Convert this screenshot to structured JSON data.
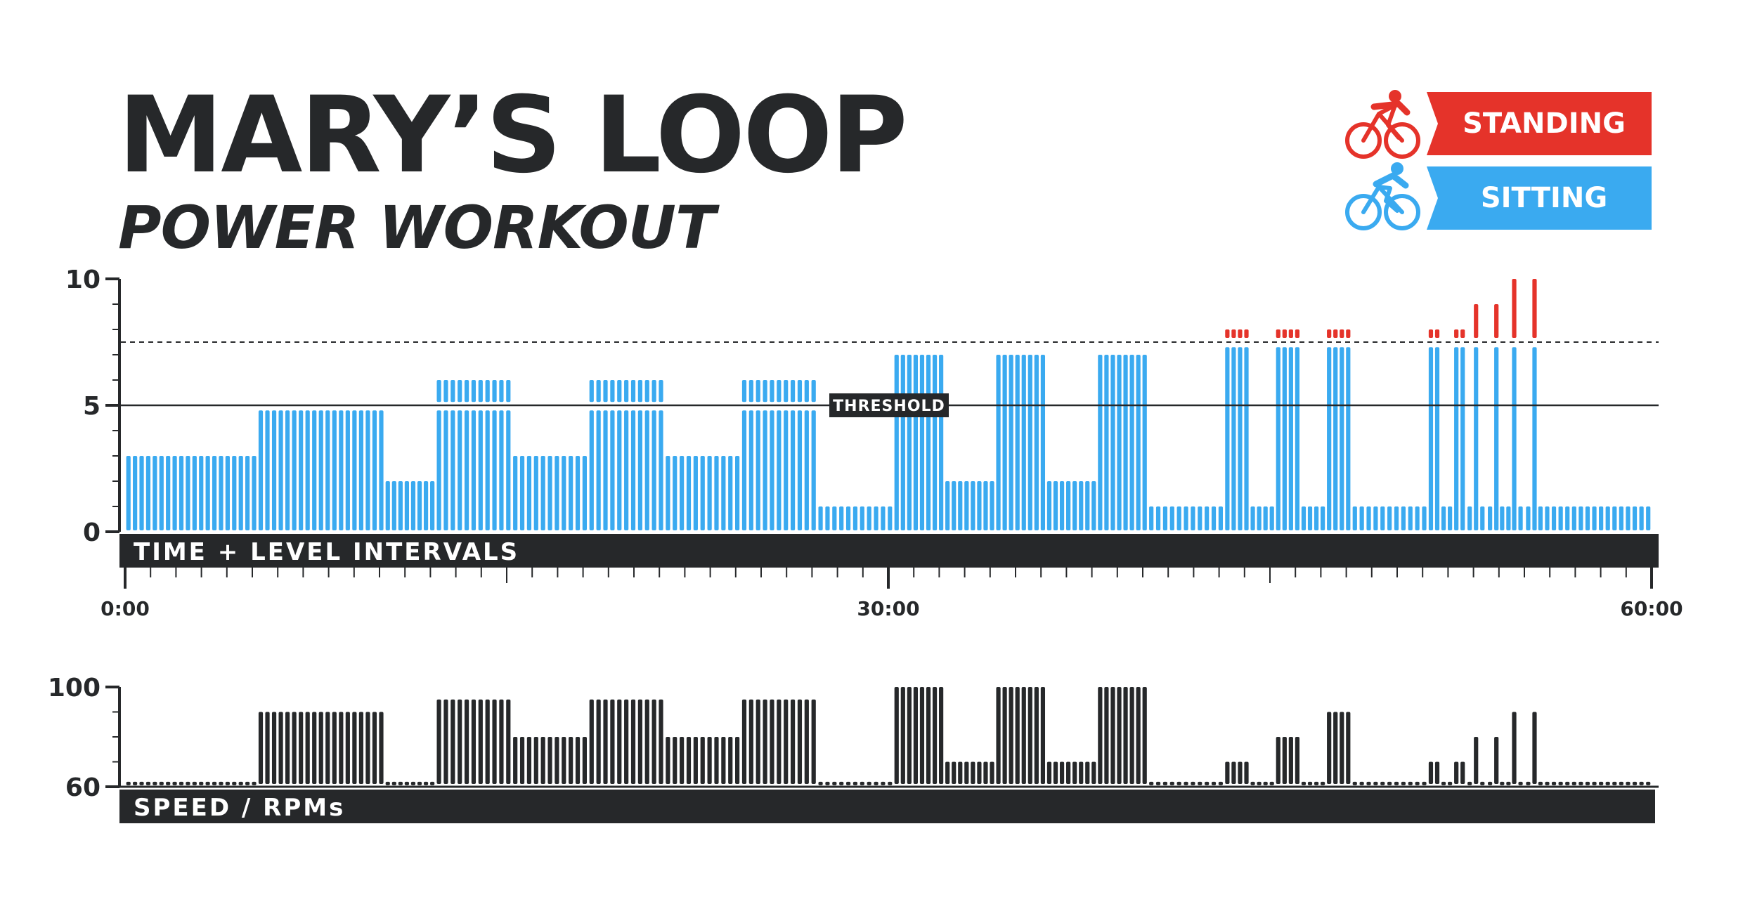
{
  "title": "MARY’S LOOP",
  "subtitle": "POWER WORKOUT",
  "legend": {
    "standing": "STANDING",
    "sitting": "SITTING"
  },
  "colors": {
    "sitting": "#3aaaf0",
    "standing": "#e5332a",
    "dark": "#26282a"
  },
  "icons": {
    "standing": "cyclist-standing-icon",
    "sitting": "cyclist-sitting-icon"
  },
  "chart_data": [
    {
      "type": "bar",
      "band_label": "TIME + LEVEL INTERVALS",
      "threshold_label": "THRESHOLD",
      "threshold": 5,
      "upper_reference": 7.5,
      "ylim": [
        0,
        10
      ],
      "yticks": [
        "10",
        "5",
        "0"
      ],
      "x_range_minutes": [
        0,
        60
      ],
      "xticks": [
        "0:00",
        "30:00",
        "60:00"
      ],
      "segments": [
        {
          "start": 0,
          "end": 5.2,
          "sitting": 3
        },
        {
          "start": 5.2,
          "end": 10.2,
          "sitting": 4.8
        },
        {
          "start": 10.2,
          "end": 12.2,
          "sitting": 2
        },
        {
          "start": 12.2,
          "end": 15.2,
          "sitting": 4.8,
          "sitting_top": 6
        },
        {
          "start": 15.2,
          "end": 18.2,
          "sitting": 3
        },
        {
          "start": 18.2,
          "end": 21.2,
          "sitting": 4.8,
          "sitting_top": 6
        },
        {
          "start": 21.2,
          "end": 24.2,
          "sitting": 3
        },
        {
          "start": 24.2,
          "end": 27.2,
          "sitting": 4.8,
          "sitting_top": 6
        },
        {
          "start": 27.2,
          "end": 30.2,
          "sitting": 1
        },
        {
          "start": 30.2,
          "end": 32.2,
          "sitting": 7
        },
        {
          "start": 32.2,
          "end": 34.2,
          "sitting": 2
        },
        {
          "start": 34.2,
          "end": 36.2,
          "sitting": 7
        },
        {
          "start": 36.2,
          "end": 38.2,
          "sitting": 2
        },
        {
          "start": 38.2,
          "end": 40.2,
          "sitting": 7
        },
        {
          "start": 40.2,
          "end": 43.2,
          "sitting": 1
        },
        {
          "start": 43.2,
          "end": 44.2,
          "sitting": 7.3,
          "standing": 8
        },
        {
          "start": 44.2,
          "end": 45.2,
          "sitting": 1
        },
        {
          "start": 45.2,
          "end": 46.2,
          "sitting": 7.3,
          "standing": 8
        },
        {
          "start": 46.2,
          "end": 47.2,
          "sitting": 1
        },
        {
          "start": 47.2,
          "end": 48.2,
          "sitting": 7.3,
          "standing": 8
        },
        {
          "start": 48.2,
          "end": 51.2,
          "sitting": 1
        },
        {
          "start": 51.2,
          "end": 51.7,
          "sitting": 7.3,
          "standing": 8
        },
        {
          "start": 51.7,
          "end": 52.2,
          "sitting": 1
        },
        {
          "start": 52.2,
          "end": 52.7,
          "sitting": 7.3,
          "standing": 8
        },
        {
          "start": 52.7,
          "end": 53.0,
          "sitting": 1
        },
        {
          "start": 53.0,
          "end": 53.2,
          "sitting": 7.3,
          "standing": 9
        },
        {
          "start": 53.2,
          "end": 53.8,
          "sitting": 1
        },
        {
          "start": 53.8,
          "end": 54.0,
          "sitting": 7.3,
          "standing": 9
        },
        {
          "start": 54.0,
          "end": 54.5,
          "sitting": 1
        },
        {
          "start": 54.5,
          "end": 54.7,
          "sitting": 7.3,
          "standing": 10
        },
        {
          "start": 54.7,
          "end": 55.3,
          "sitting": 1
        },
        {
          "start": 55.3,
          "end": 55.5,
          "sitting": 7.3,
          "standing": 10
        },
        {
          "start": 55.5,
          "end": 60,
          "sitting": 1
        }
      ]
    },
    {
      "type": "bar",
      "band_label": "SPEED / RPMs",
      "ylim": [
        60,
        100
      ],
      "yticks": [
        "100",
        "60"
      ],
      "x_range_minutes": [
        0,
        60
      ],
      "segments": [
        {
          "start": 0,
          "end": 5.2,
          "rpm": 62
        },
        {
          "start": 5.2,
          "end": 10.2,
          "rpm": 90
        },
        {
          "start": 10.2,
          "end": 12.2,
          "rpm": 62
        },
        {
          "start": 12.2,
          "end": 15.2,
          "rpm": 95
        },
        {
          "start": 15.2,
          "end": 18.2,
          "rpm": 80
        },
        {
          "start": 18.2,
          "end": 21.2,
          "rpm": 95
        },
        {
          "start": 21.2,
          "end": 24.2,
          "rpm": 80
        },
        {
          "start": 24.2,
          "end": 27.2,
          "rpm": 95
        },
        {
          "start": 27.2,
          "end": 30.2,
          "rpm": 62
        },
        {
          "start": 30.2,
          "end": 32.2,
          "rpm": 100
        },
        {
          "start": 32.2,
          "end": 34.2,
          "rpm": 70
        },
        {
          "start": 34.2,
          "end": 36.2,
          "rpm": 100
        },
        {
          "start": 36.2,
          "end": 38.2,
          "rpm": 70
        },
        {
          "start": 38.2,
          "end": 40.2,
          "rpm": 100
        },
        {
          "start": 40.2,
          "end": 43.2,
          "rpm": 62
        },
        {
          "start": 43.2,
          "end": 44.2,
          "rpm": 70
        },
        {
          "start": 44.2,
          "end": 45.2,
          "rpm": 62
        },
        {
          "start": 45.2,
          "end": 46.2,
          "rpm": 80
        },
        {
          "start": 46.2,
          "end": 47.2,
          "rpm": 62
        },
        {
          "start": 47.2,
          "end": 48.2,
          "rpm": 90
        },
        {
          "start": 48.2,
          "end": 51.2,
          "rpm": 62
        },
        {
          "start": 51.2,
          "end": 51.7,
          "rpm": 70
        },
        {
          "start": 51.7,
          "end": 52.2,
          "rpm": 62
        },
        {
          "start": 52.2,
          "end": 52.7,
          "rpm": 70
        },
        {
          "start": 52.7,
          "end": 53.0,
          "rpm": 62
        },
        {
          "start": 53.0,
          "end": 53.2,
          "rpm": 80
        },
        {
          "start": 53.2,
          "end": 53.8,
          "rpm": 62
        },
        {
          "start": 53.8,
          "end": 54.0,
          "rpm": 80
        },
        {
          "start": 54.0,
          "end": 54.5,
          "rpm": 62
        },
        {
          "start": 54.5,
          "end": 54.7,
          "rpm": 90
        },
        {
          "start": 54.7,
          "end": 55.3,
          "rpm": 62
        },
        {
          "start": 55.3,
          "end": 55.5,
          "rpm": 90
        },
        {
          "start": 55.5,
          "end": 60,
          "rpm": 62
        }
      ]
    }
  ]
}
